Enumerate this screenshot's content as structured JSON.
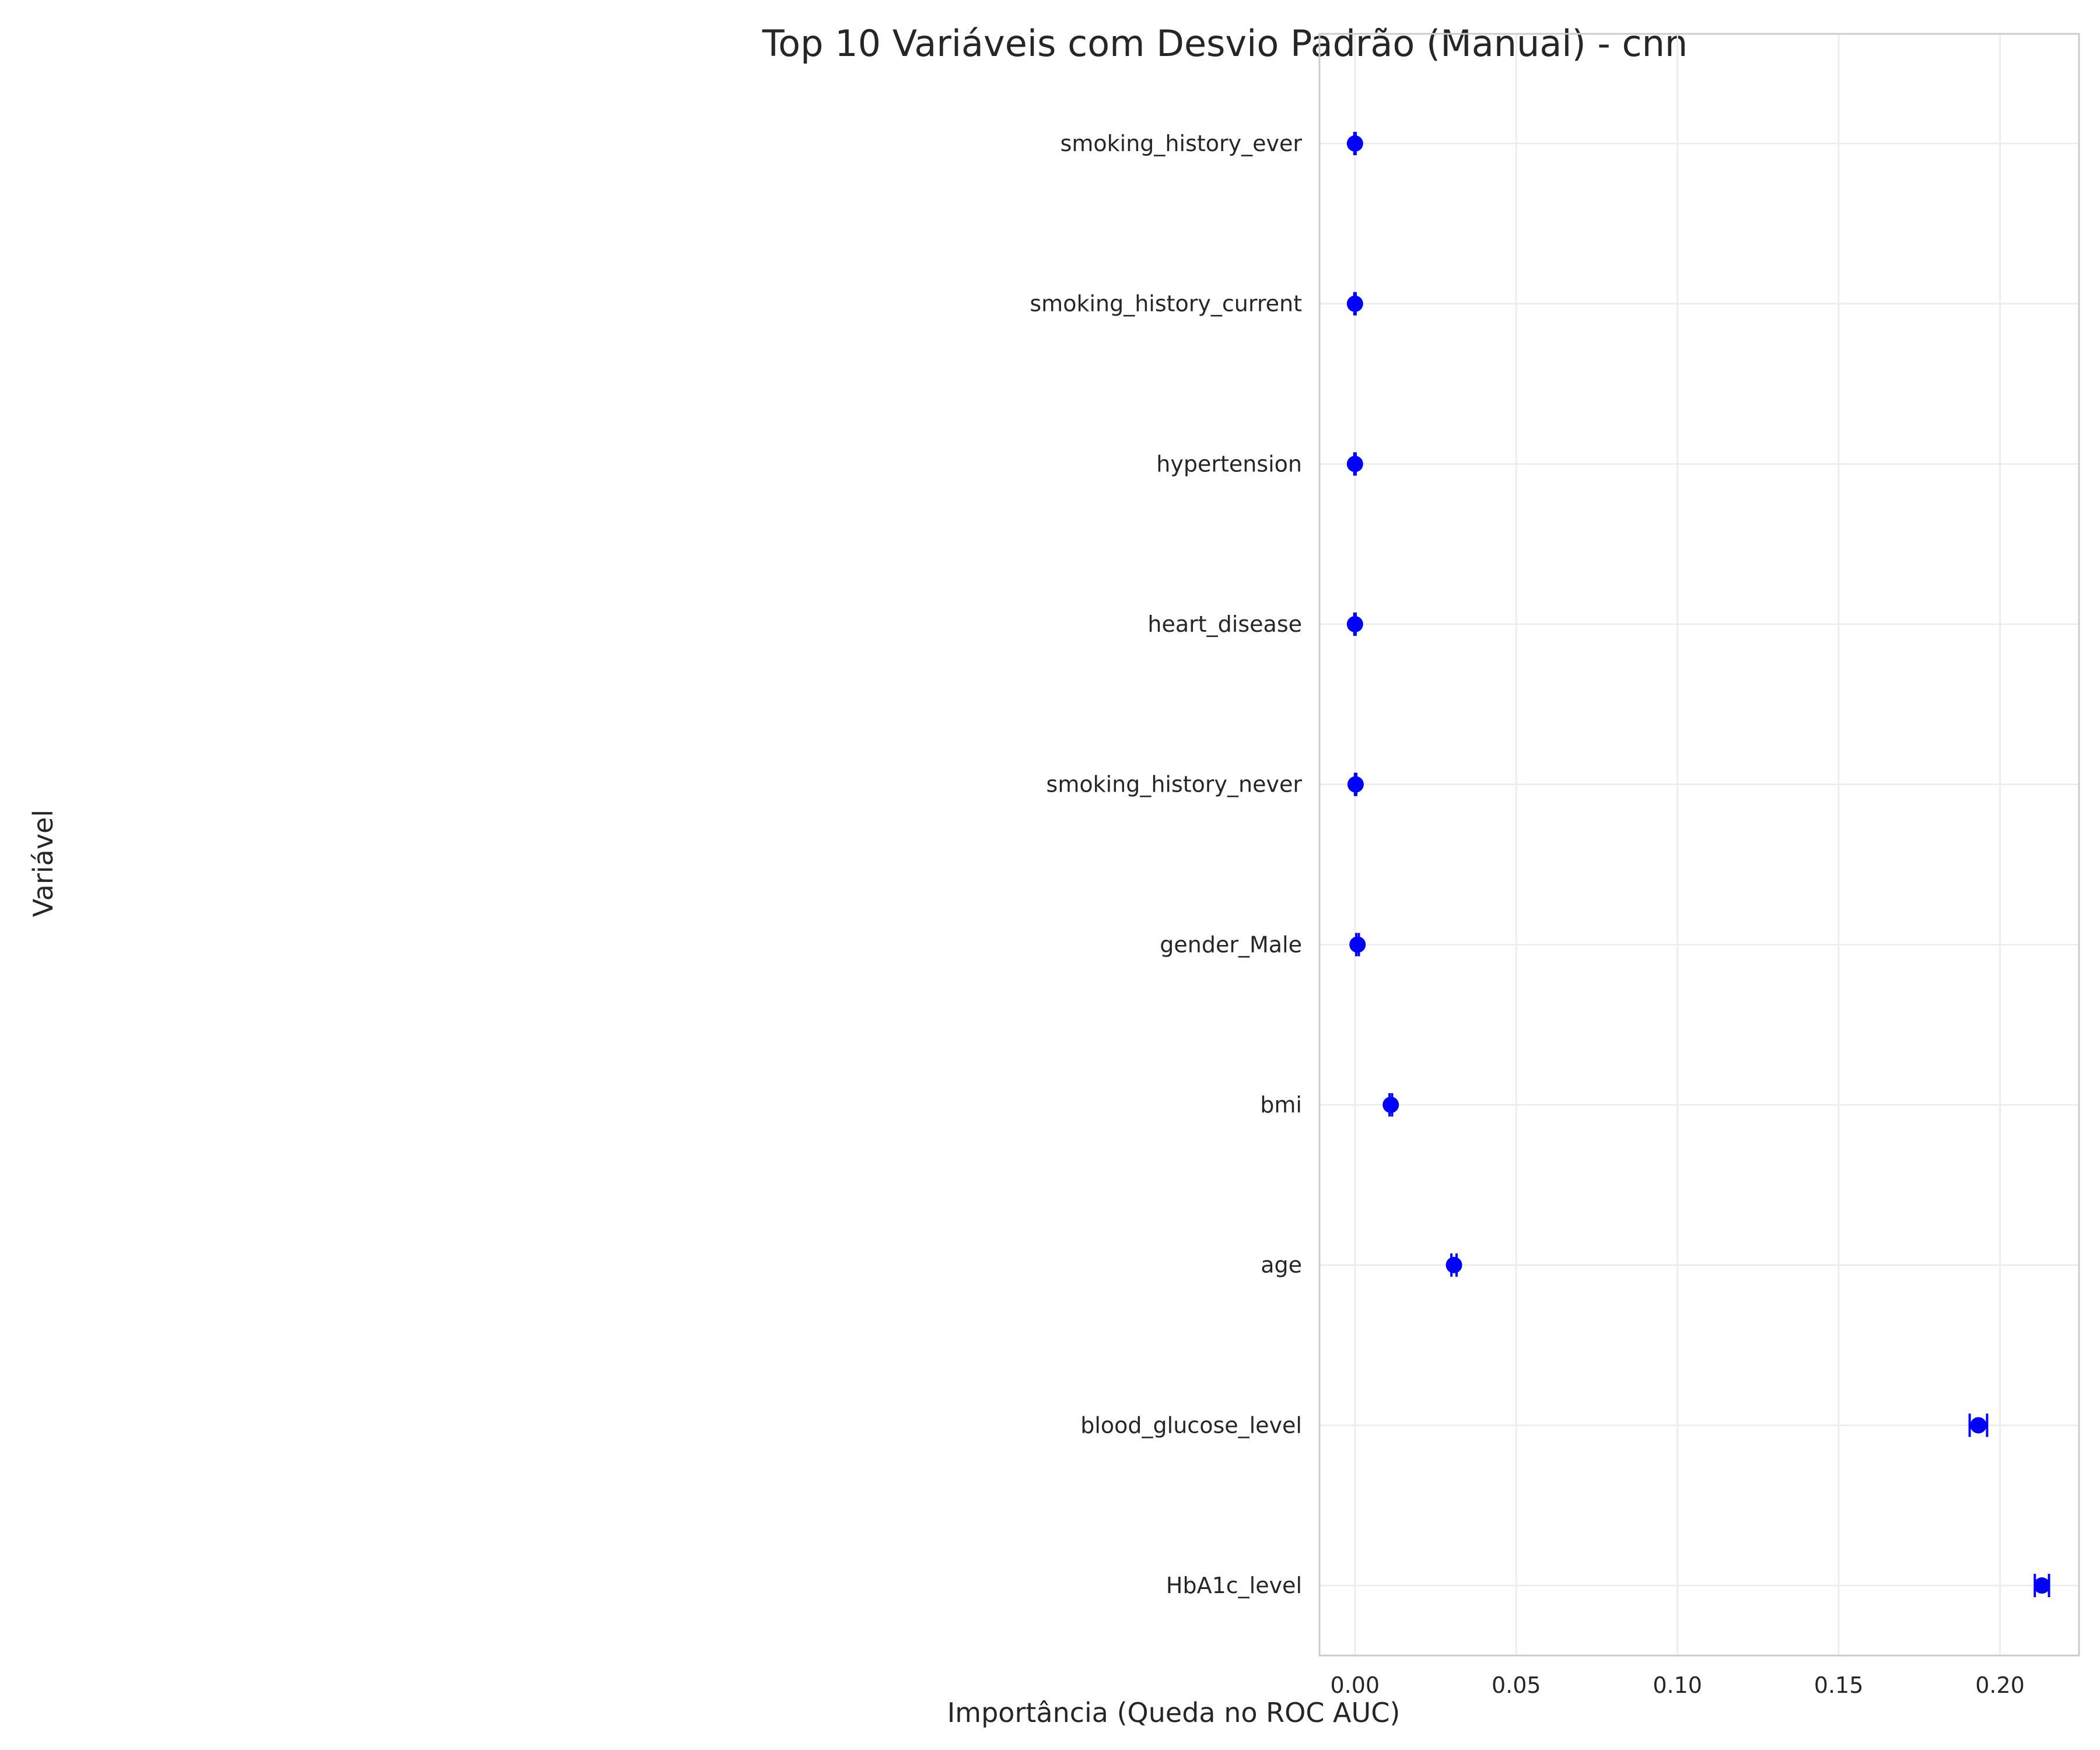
{
  "chart_data": {
    "type": "scatter",
    "title": "Top 10 Variáveis com Desvio Padrão (Manual) - cnn",
    "xlabel": "Importância (Queda no ROC AUC)",
    "ylabel": "Variável",
    "xlim": [
      -0.011,
      0.2245
    ],
    "xticks": [
      "0.00",
      "0.05",
      "0.10",
      "0.15",
      "0.20"
    ],
    "xtick_values": [
      0.0,
      0.05,
      0.1,
      0.15,
      0.2
    ],
    "grid": true,
    "marker_color": "#0000ff",
    "categories": [
      "smoking_history_ever",
      "smoking_history_current",
      "hypertension",
      "heart_disease",
      "smoking_history_never",
      "gender_Male",
      "bmi",
      "age",
      "blood_glucose_level",
      "HbA1c_level"
    ],
    "values": [
      0.0,
      0.0,
      0.0,
      0.0,
      0.0002,
      0.0008,
      0.0111,
      0.0307,
      0.1933,
      0.213
    ],
    "errors": [
      0.0002,
      0.0002,
      0.0002,
      0.0002,
      0.0002,
      0.0004,
      0.0004,
      0.0008,
      0.0027,
      0.0022
    ]
  }
}
